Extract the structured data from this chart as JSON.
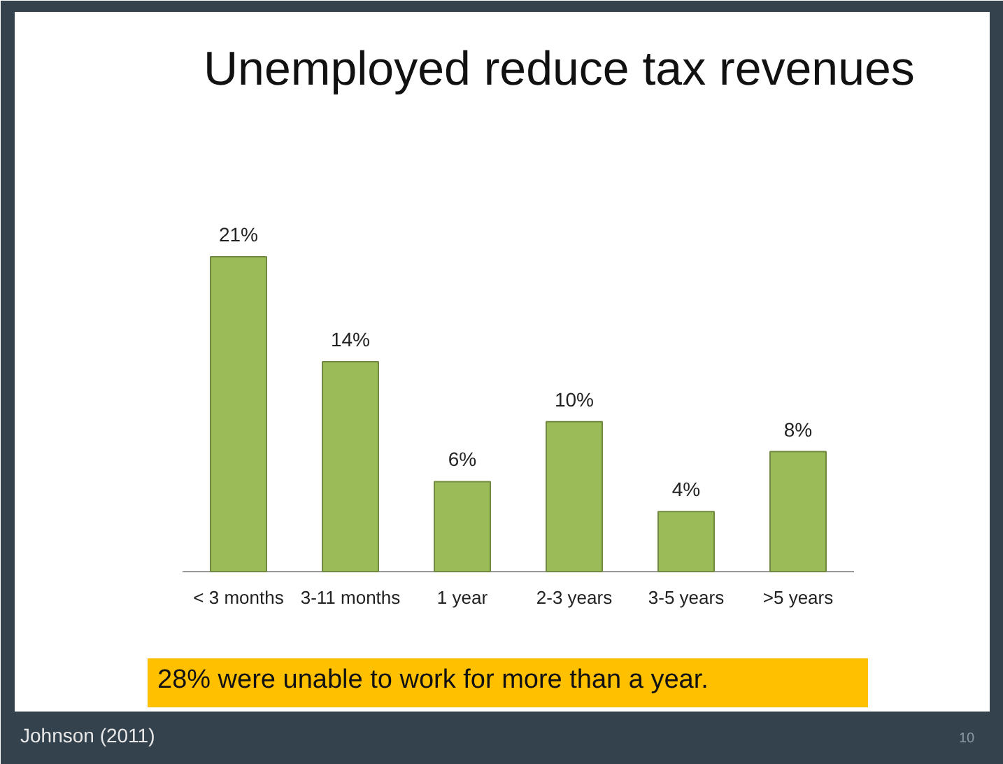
{
  "chart_data": {
    "type": "bar",
    "title": "Unemployed reduce tax revenues",
    "categories": [
      "< 3 months",
      "3-11 months",
      "1 year",
      "2-3 years",
      "3-5 years",
      ">5 years"
    ],
    "values": [
      21,
      14,
      6,
      10,
      4,
      8
    ],
    "value_labels": [
      "21%",
      "14%",
      "6%",
      "10%",
      "4%",
      "8%"
    ],
    "color": "#9bbb59",
    "annotations": [
      "28% were unable to work for more than a year.",
      "Johnson (2011)",
      "10"
    ]
  }
}
